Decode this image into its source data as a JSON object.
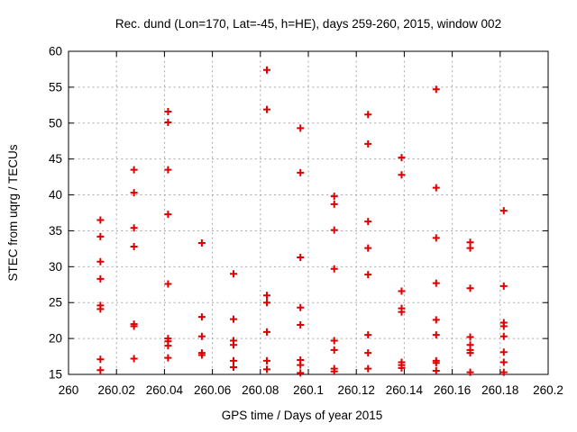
{
  "page": {
    "background_color": "#ffffff",
    "text_color": "#000000"
  },
  "chart_data": {
    "type": "scatter",
    "title": "Rec. dund (Lon=170, Lat=-45, h=HE), days 259-260, 2015, window 002",
    "xlabel": "GPS time / Days of year 2015",
    "ylabel": "STEC from uqrg / TECUs",
    "xlim": [
      260.0,
      260.2
    ],
    "ylim": [
      15,
      60
    ],
    "grid": true,
    "legend_position": "none",
    "marker": {
      "shape": "plus",
      "color": "#dd0000",
      "size": 9
    },
    "grid_color": "#a8a8a8",
    "border_color": "#000000",
    "xticks": [
      {
        "v": 260.0,
        "label": "260"
      },
      {
        "v": 260.02,
        "label": "260.02"
      },
      {
        "v": 260.04,
        "label": "260.04"
      },
      {
        "v": 260.06,
        "label": "260.06"
      },
      {
        "v": 260.08,
        "label": "260.08"
      },
      {
        "v": 260.1,
        "label": "260.1"
      },
      {
        "v": 260.12,
        "label": "260.12"
      },
      {
        "v": 260.14,
        "label": "260.14"
      },
      {
        "v": 260.16,
        "label": "260.16"
      },
      {
        "v": 260.18,
        "label": "260.18"
      },
      {
        "v": 260.2,
        "label": "260.2"
      }
    ],
    "yticks": [
      {
        "v": 15,
        "label": "15"
      },
      {
        "v": 20,
        "label": "20"
      },
      {
        "v": 25,
        "label": "25"
      },
      {
        "v": 30,
        "label": "30"
      },
      {
        "v": 35,
        "label": "35"
      },
      {
        "v": 40,
        "label": "40"
      },
      {
        "v": 45,
        "label": "45"
      },
      {
        "v": 50,
        "label": "50"
      },
      {
        "v": 55,
        "label": "55"
      },
      {
        "v": 60,
        "label": "60"
      }
    ],
    "series": [
      {
        "name": "STEC",
        "points": [
          [
            260.0133,
            36.5
          ],
          [
            260.0133,
            34.2
          ],
          [
            260.0133,
            30.7
          ],
          [
            260.0133,
            28.3
          ],
          [
            260.0133,
            24.6
          ],
          [
            260.0133,
            24.1
          ],
          [
            260.0133,
            17.1
          ],
          [
            260.0133,
            15.6
          ],
          [
            260.0273,
            43.5
          ],
          [
            260.0273,
            40.3
          ],
          [
            260.0273,
            35.4
          ],
          [
            260.0273,
            32.8
          ],
          [
            260.0273,
            22.0
          ],
          [
            260.0273,
            21.7
          ],
          [
            260.0273,
            17.2
          ],
          [
            260.0415,
            51.6
          ],
          [
            260.0415,
            50.1
          ],
          [
            260.0415,
            43.5
          ],
          [
            260.0415,
            37.3
          ],
          [
            260.0415,
            27.6
          ],
          [
            260.0415,
            20.0
          ],
          [
            260.0415,
            19.6
          ],
          [
            260.0415,
            19.0
          ],
          [
            260.0415,
            17.3
          ],
          [
            260.0556,
            33.3
          ],
          [
            260.0556,
            23.0
          ],
          [
            260.0556,
            20.3
          ],
          [
            260.0556,
            18.0
          ],
          [
            260.0556,
            17.7
          ],
          [
            260.0688,
            29.0
          ],
          [
            260.0688,
            22.7
          ],
          [
            260.0688,
            19.7
          ],
          [
            260.0688,
            19.1
          ],
          [
            260.0688,
            16.9
          ],
          [
            260.0688,
            16.0
          ],
          [
            260.0827,
            57.4
          ],
          [
            260.0827,
            51.9
          ],
          [
            260.0827,
            26.0
          ],
          [
            260.0827,
            25.0
          ],
          [
            260.0827,
            20.9
          ],
          [
            260.0827,
            16.9
          ],
          [
            260.0827,
            15.7
          ],
          [
            260.0967,
            49.3
          ],
          [
            260.0967,
            43.1
          ],
          [
            260.0967,
            31.3
          ],
          [
            260.0967,
            24.3
          ],
          [
            260.0967,
            21.9
          ],
          [
            260.0967,
            17.0
          ],
          [
            260.0967,
            16.3
          ],
          [
            260.0967,
            15.2
          ],
          [
            260.1108,
            39.8
          ],
          [
            260.1108,
            38.7
          ],
          [
            260.1108,
            35.1
          ],
          [
            260.1108,
            29.7
          ],
          [
            260.1108,
            19.7
          ],
          [
            260.1108,
            18.4
          ],
          [
            260.1108,
            15.8
          ],
          [
            260.1108,
            15.4
          ],
          [
            260.1249,
            51.2
          ],
          [
            260.1249,
            47.1
          ],
          [
            260.1249,
            36.3
          ],
          [
            260.1249,
            32.6
          ],
          [
            260.1249,
            28.9
          ],
          [
            260.1249,
            20.5
          ],
          [
            260.1249,
            18.0
          ],
          [
            260.1249,
            15.8
          ],
          [
            260.1389,
            45.2
          ],
          [
            260.1389,
            42.8
          ],
          [
            260.1389,
            26.6
          ],
          [
            260.1389,
            24.2
          ],
          [
            260.1389,
            23.7
          ],
          [
            260.1389,
            16.7
          ],
          [
            260.1389,
            16.3
          ],
          [
            260.1389,
            15.9
          ],
          [
            260.1533,
            54.7
          ],
          [
            260.1533,
            41.0
          ],
          [
            260.1533,
            34.0
          ],
          [
            260.1533,
            27.7
          ],
          [
            260.1533,
            22.6
          ],
          [
            260.1533,
            20.5
          ],
          [
            260.1533,
            16.9
          ],
          [
            260.1533,
            16.6
          ],
          [
            260.1533,
            15.5
          ],
          [
            260.1675,
            33.4
          ],
          [
            260.1675,
            32.6
          ],
          [
            260.1675,
            27.0
          ],
          [
            260.1675,
            20.2
          ],
          [
            260.1675,
            19.1
          ],
          [
            260.1675,
            18.4
          ],
          [
            260.1675,
            18.0
          ],
          [
            260.1675,
            15.3
          ],
          [
            260.1815,
            37.8
          ],
          [
            260.1815,
            27.3
          ],
          [
            260.1815,
            22.2
          ],
          [
            260.1815,
            21.7
          ],
          [
            260.1815,
            20.3
          ],
          [
            260.1815,
            18.1
          ],
          [
            260.1815,
            16.7
          ],
          [
            260.1815,
            15.3
          ]
        ]
      }
    ]
  }
}
